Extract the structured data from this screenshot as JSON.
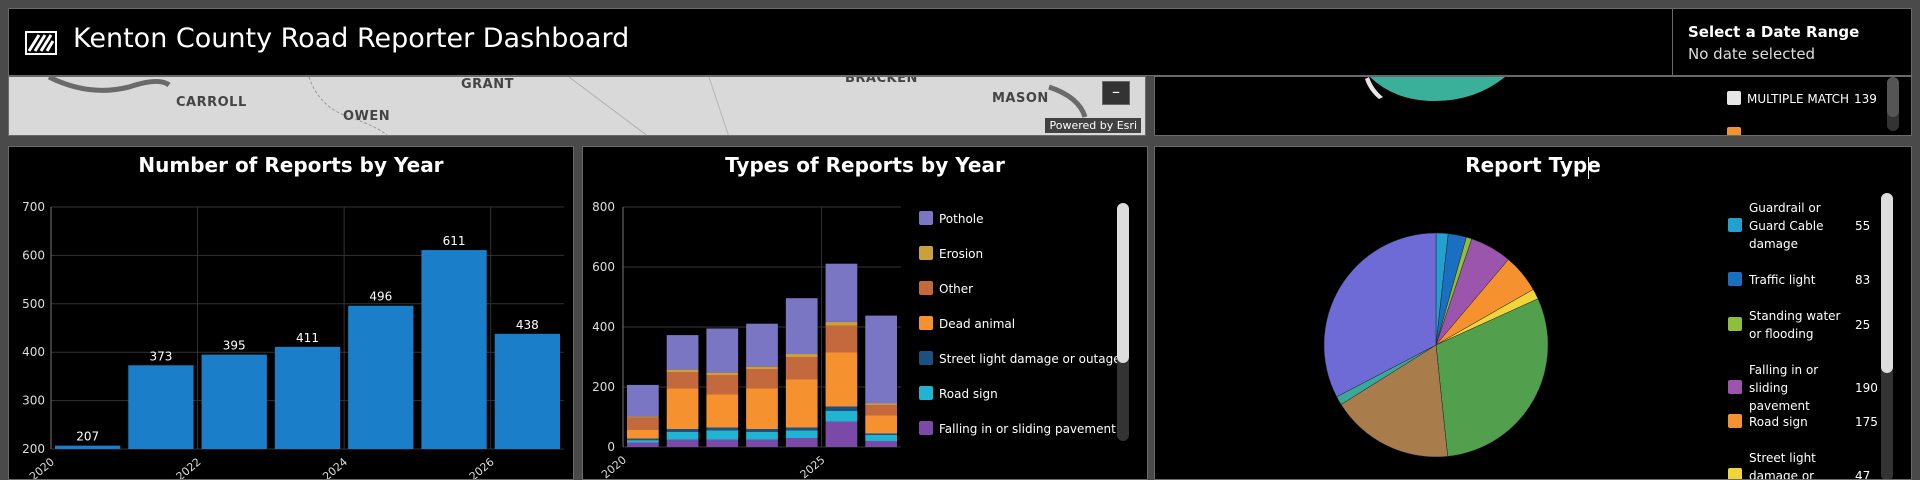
{
  "header": {
    "title": "Kenton County Road Reporter Dashboard",
    "date_range_label": "Select a Date Range",
    "date_range_value": "No date selected"
  },
  "map": {
    "labels": [
      "CARROLL",
      "GRANT",
      "OWEN",
      "BRACKEN",
      "MASON"
    ],
    "powered_by": "Powered by Esri",
    "zoom_out": "–"
  },
  "top_right_legend": [
    {
      "label": "MULTIPLE MATCH",
      "value": "139",
      "color": "#e6e6e6"
    },
    {
      "label": "",
      "value": "",
      "color": "#f5922f"
    }
  ],
  "chart_data": [
    {
      "type": "bar",
      "title": "Number of Reports by Year",
      "categories": [
        "2020",
        "2021",
        "2022",
        "2023",
        "2024",
        "2025",
        "2026"
      ],
      "x_tick_labels": [
        "2020",
        "2022",
        "2024",
        "2026"
      ],
      "values": [
        207,
        373,
        395,
        411,
        496,
        611,
        438
      ],
      "ylim": [
        200,
        700
      ],
      "yticks": [
        200,
        300,
        400,
        500,
        600,
        700
      ],
      "color": "#1a7ec8",
      "grid": true
    },
    {
      "type": "bar",
      "stacked": true,
      "title": "Types of Reports by Year",
      "categories": [
        "2020",
        "2021",
        "2022",
        "2023",
        "2024",
        "2025",
        "2026"
      ],
      "x_tick_labels": [
        "2020",
        "2025"
      ],
      "ylim": [
        0,
        800
      ],
      "yticks": [
        0,
        200,
        400,
        600,
        800
      ],
      "legend_position": "right",
      "series": [
        {
          "name": "Falling in or sliding pavement",
          "color": "#7b4aa8",
          "values": [
            15,
            25,
            25,
            25,
            30,
            85,
            20
          ]
        },
        {
          "name": "Road sign",
          "color": "#21b4d0",
          "values": [
            8,
            25,
            30,
            25,
            25,
            35,
            20
          ]
        },
        {
          "name": "Street light damage or outage",
          "color": "#1d4f80",
          "values": [
            5,
            10,
            10,
            10,
            10,
            15,
            5
          ]
        },
        {
          "name": "Dead animal",
          "color": "#f5922f",
          "values": [
            30,
            135,
            110,
            135,
            160,
            180,
            60
          ]
        },
        {
          "name": "Other",
          "color": "#c4683d",
          "values": [
            40,
            55,
            65,
            65,
            75,
            90,
            35
          ]
        },
        {
          "name": "Erosion",
          "color": "#c9a03a",
          "values": [
            4,
            8,
            8,
            8,
            10,
            12,
            5
          ]
        },
        {
          "name": "Pothole",
          "color": "#7b76c4",
          "values": [
            105,
            115,
            147,
            143,
            186,
            194,
            293
          ]
        }
      ]
    },
    {
      "type": "pie",
      "title": "Report Type",
      "slices": [
        {
          "label": "Guardrail or Guard Cable damage",
          "value": 55,
          "color": "#23a0d0"
        },
        {
          "label": "Traffic light",
          "value": 83,
          "color": "#1a6fc0"
        },
        {
          "label": "Standing water or flooding",
          "value": 25,
          "color": "#8fbf3a"
        },
        {
          "label": "Falling in or sliding pavement",
          "value": 190,
          "color": "#9b55ad"
        },
        {
          "label": "Road sign",
          "value": 175,
          "color": "#f5922f"
        },
        {
          "label": "Street light damage or outage",
          "value": 47,
          "color": "#f0d43a"
        },
        {
          "label": "",
          "value": 950,
          "color": "#52a04e"
        },
        {
          "label": "",
          "value": 560,
          "color": "#a97c4c"
        },
        {
          "label": "",
          "value": 40,
          "color": "#3aa89a"
        },
        {
          "label": "",
          "value": 1030,
          "color": "#6e6bd6"
        }
      ],
      "legend_position": "right"
    }
  ]
}
